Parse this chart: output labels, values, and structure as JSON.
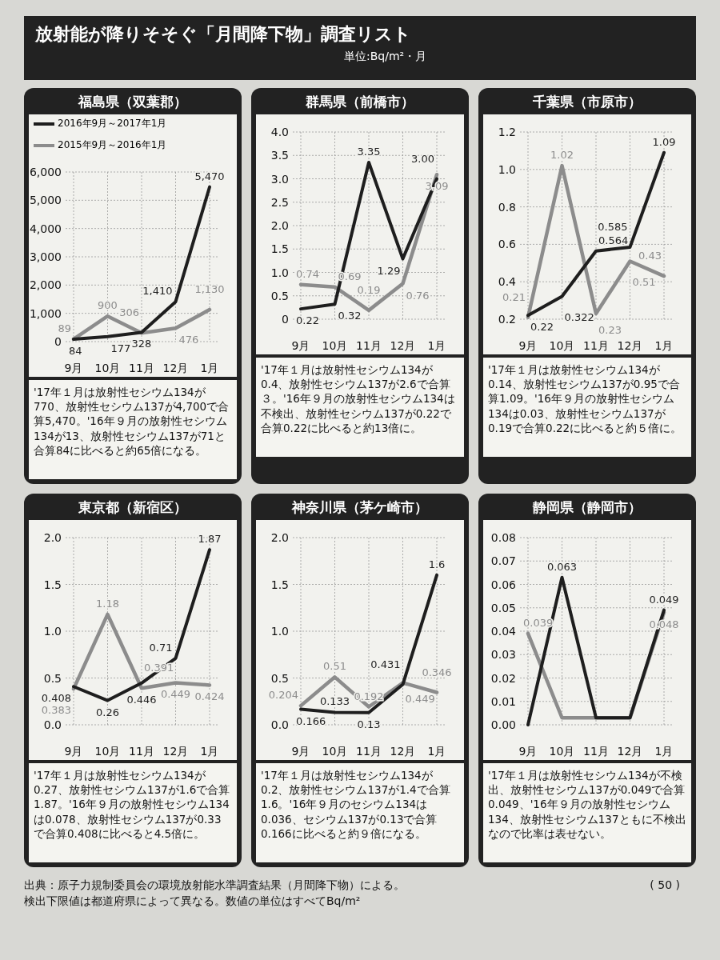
{
  "chart_data": [
    {
      "type": "other",
      "title": "放射能が降りそそぐ「月間降下物」調査リスト",
      "subtitle": "単位:Bq/m²・月",
      "annotations": [
        "出典：原子力規制委員会の環境放射能水準調査結果（月間降下物）による。",
        "検出下限値は都道府県によって異なる。数値の単位はすべてBq/m²",
        "( 50 )"
      ]
    },
    {
      "type": "line",
      "title": "福島県（双葉郡）",
      "categories": [
        "9月",
        "10月",
        "11月",
        "12月",
        "1月"
      ],
      "ylim": [
        0,
        6000
      ],
      "yticks": [
        {
          "value": 0,
          "label": "0"
        },
        {
          "value": 1000,
          "label": "1,000"
        },
        {
          "value": 2000,
          "label": "2,000"
        },
        {
          "value": 3000,
          "label": "3,000"
        },
        {
          "value": 4000,
          "label": "4,000"
        },
        {
          "value": 5000,
          "label": "5,000"
        },
        {
          "value": 6000,
          "label": "6,000"
        }
      ],
      "grid": true,
      "legend": "top",
      "annotations": [
        "'17年１月は放射性セシウム134が770、放射性セシウム137が4,700で合算5,470。'16年９月の放射性セシウム134が13、放射性セシウム137が71と合算84に比べると約65倍になる。"
      ],
      "series": [
        {
          "name": "2016年9月～2017年1月",
          "color": "#1e1e1e",
          "values": [
            84,
            177,
            328,
            1410,
            5470
          ],
          "value_labels": [
            "84",
            "177",
            "328",
            "1,410",
            "5,470"
          ]
        },
        {
          "name": "2015年9月～2016年1月",
          "color": "#8c8c8c",
          "values": [
            89,
            900,
            306,
            476,
            1130
          ],
          "value_labels": [
            "89",
            "900",
            "306",
            "476",
            "1,130"
          ]
        }
      ]
    },
    {
      "type": "line",
      "title": "群馬県（前橋市）",
      "categories": [
        "9月",
        "10月",
        "11月",
        "12月",
        "1月"
      ],
      "ylim": [
        0,
        4
      ],
      "yticks": [
        {
          "value": 0,
          "label": "0"
        },
        {
          "value": 0.5,
          "label": "0.5"
        },
        {
          "value": 1,
          "label": "1.0"
        },
        {
          "value": 1.5,
          "label": "1.5"
        },
        {
          "value": 2,
          "label": "2.0"
        },
        {
          "value": 2.5,
          "label": "2.5"
        },
        {
          "value": 3,
          "label": "3.0"
        },
        {
          "value": 3.5,
          "label": "3.5"
        },
        {
          "value": 4,
          "label": "4.0"
        }
      ],
      "grid": true,
      "annotations": [
        "'17年１月は放射性セシウム134が0.4、放射性セシウム137が2.6で合算３。'16年９月の放射性セシウム134は不検出、放射性セシウム137が0.22で合算0.22に比べると約13倍に。"
      ],
      "series": [
        {
          "color": "#1e1e1e",
          "values": [
            0.22,
            0.32,
            3.35,
            1.29,
            3.0
          ],
          "value_labels": [
            "0.22",
            "0.32",
            "3.35",
            "1.29",
            "3.00"
          ]
        },
        {
          "color": "#8c8c8c",
          "values": [
            0.74,
            0.69,
            0.19,
            0.76,
            3.09
          ],
          "value_labels": [
            "0.74",
            "0.69",
            "0.19",
            "0.76",
            "3.09"
          ]
        }
      ]
    },
    {
      "type": "line",
      "title": "千葉県（市原市）",
      "categories": [
        "9月",
        "10月",
        "11月",
        "12月",
        "1月"
      ],
      "ylim": [
        0.2,
        1.2
      ],
      "yticks": [
        {
          "value": 0.2,
          "label": "0.2"
        },
        {
          "value": 0.4,
          "label": "0.4"
        },
        {
          "value": 0.6,
          "label": "0.6"
        },
        {
          "value": 0.8,
          "label": "0.8"
        },
        {
          "value": 1,
          "label": "1.0"
        },
        {
          "value": 1.2,
          "label": "1.2"
        }
      ],
      "grid": true,
      "annotations": [
        "'17年１月は放射性セシウム134が0.14、放射性セシウム137が0.95で合算1.09。'16年９月の放射性セシウム134は0.03、放射性セシウム137が0.19で合算0.22に比べると約５倍に。"
      ],
      "series": [
        {
          "color": "#1e1e1e",
          "values": [
            0.22,
            0.322,
            0.564,
            0.585,
            1.09
          ],
          "value_labels": [
            "0.22",
            "0.322",
            "0.564",
            "0.585",
            "1.09"
          ]
        },
        {
          "color": "#8c8c8c",
          "values": [
            0.21,
            1.02,
            0.23,
            0.51,
            0.43
          ],
          "value_labels": [
            "0.21",
            "1.02",
            "0.23",
            "0.51",
            "0.43"
          ]
        }
      ]
    },
    {
      "type": "line",
      "title": "東京都（新宿区）",
      "categories": [
        "9月",
        "10月",
        "11月",
        "12月",
        "1月"
      ],
      "ylim": [
        0,
        2
      ],
      "yticks": [
        {
          "value": 0,
          "label": "0.0"
        },
        {
          "value": 0.5,
          "label": "0.5"
        },
        {
          "value": 1,
          "label": "1.0"
        },
        {
          "value": 1.5,
          "label": "1.5"
        },
        {
          "value": 2,
          "label": "2.0"
        }
      ],
      "grid": true,
      "annotations": [
        "'17年１月は放射性セシウム134が0.27、放射性セシウム137が1.6で合算1.87。'16年９月の放射性セシウム134は0.078、放射性セシウム137が0.33で合算0.408に比べると4.5倍に。"
      ],
      "series": [
        {
          "color": "#1e1e1e",
          "values": [
            0.408,
            0.26,
            0.446,
            0.71,
            1.87
          ],
          "value_labels": [
            "0.408",
            "0.26",
            "0.446",
            "0.71",
            "1.87"
          ]
        },
        {
          "color": "#8c8c8c",
          "values": [
            0.383,
            1.18,
            0.391,
            0.449,
            0.424
          ],
          "value_labels": [
            "0.383",
            "1.18",
            "0.391",
            "0.449",
            "0.424"
          ]
        }
      ]
    },
    {
      "type": "line",
      "title": "神奈川県（茅ケ崎市）",
      "categories": [
        "9月",
        "10月",
        "11月",
        "12月",
        "1月"
      ],
      "ylim": [
        0,
        2
      ],
      "yticks": [
        {
          "value": 0,
          "label": "0.0"
        },
        {
          "value": 0.5,
          "label": "0.5"
        },
        {
          "value": 1,
          "label": "1.0"
        },
        {
          "value": 1.5,
          "label": "1.5"
        },
        {
          "value": 2,
          "label": "2.0"
        }
      ],
      "grid": true,
      "annotations": [
        "'17年１月は放射性セシウム134が0.2、放射性セシウム137が1.4で合算1.6。'16年９月のセシウム134は0.036、セシウム137が0.13で合算0.166に比べると約９倍になる。"
      ],
      "series": [
        {
          "color": "#1e1e1e",
          "values": [
            0.166,
            0.133,
            0.13,
            0.431,
            1.6
          ],
          "value_labels": [
            "0.166",
            "0.133",
            "0.13",
            "0.431",
            "1.6"
          ]
        },
        {
          "color": "#8c8c8c",
          "values": [
            0.204,
            0.51,
            0.192,
            0.449,
            0.346
          ],
          "value_labels": [
            "0.204",
            "0.51",
            "0.192",
            "0.449",
            "0.346"
          ]
        }
      ]
    },
    {
      "type": "line",
      "title": "静岡県（静岡市）",
      "categories": [
        "9月",
        "10月",
        "11月",
        "12月",
        "1月"
      ],
      "ylim": [
        0,
        0.08
      ],
      "yticks": [
        {
          "value": 0,
          "label": "0.00"
        },
        {
          "value": 0.01,
          "label": "0.01"
        },
        {
          "value": 0.02,
          "label": "0.02"
        },
        {
          "value": 0.03,
          "label": "0.03"
        },
        {
          "value": 0.04,
          "label": "0.04"
        },
        {
          "value": 0.05,
          "label": "0.05"
        },
        {
          "value": 0.06,
          "label": "0.06"
        },
        {
          "value": 0.07,
          "label": "0.07"
        },
        {
          "value": 0.08,
          "label": "0.08"
        }
      ],
      "grid": true,
      "annotations": [
        "'17年１月は放射性セシウム134が不検出、放射性セシウム137が0.049で合算0.049、'16年９月の放射性セシウム134、放射性セシウム137ともに不検出なので比率は表せない。"
      ],
      "series": [
        {
          "color": "#1e1e1e",
          "values": [
            0,
            0.063,
            0.003,
            0.003,
            0.049
          ],
          "value_labels": [
            null,
            "0.063",
            null,
            null,
            "0.049"
          ]
        },
        {
          "color": "#8c8c8c",
          "values": [
            0.039,
            0.003,
            0.003,
            0.003,
            0.048
          ],
          "value_labels": [
            "0.039",
            null,
            null,
            null,
            "0.048"
          ]
        }
      ]
    }
  ]
}
